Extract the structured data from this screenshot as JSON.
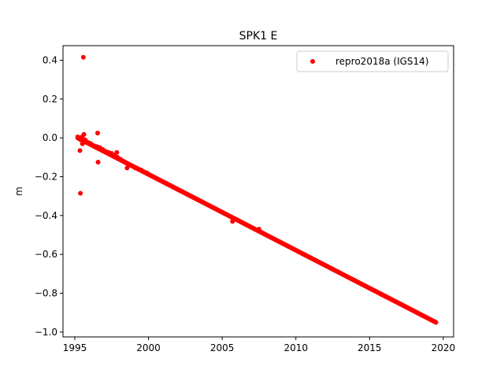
{
  "chart_data": {
    "type": "scatter",
    "title": "SPK1 E",
    "xlabel": "",
    "ylabel": "m",
    "xlim": [
      1994.2,
      2020.7
    ],
    "ylim": [
      -1.025,
      0.475
    ],
    "xticks": [
      1995,
      2000,
      2005,
      2010,
      2015,
      2020
    ],
    "xtick_labels": [
      "1995",
      "2000",
      "2005",
      "2010",
      "2015",
      "2020"
    ],
    "yticks": [
      0.4,
      0.2,
      0.0,
      -0.2,
      -0.4,
      -0.6,
      -0.8,
      -1.0
    ],
    "ytick_labels": [
      "0.4",
      "0.2",
      "0.0",
      "−0.2",
      "−0.4",
      "−0.6",
      "−0.8",
      "−1.0"
    ],
    "grid": false,
    "legend_position": "top-right",
    "series": [
      {
        "name": "repro2018a (IGS14)",
        "color": "#ff0000",
        "trend": {
          "x_start": 1995.2,
          "y_start": 0.0,
          "x_end": 2019.5,
          "y_end": -0.95
        },
        "points": [
          [
            1995.2,
            0.005
          ],
          [
            1995.3,
            0.0
          ],
          [
            1995.4,
            -0.01
          ],
          [
            1995.5,
            0.005
          ],
          [
            1995.6,
            -0.02
          ],
          [
            1995.7,
            -0.01
          ],
          [
            1995.8,
            -0.02
          ],
          [
            1995.95,
            -0.025
          ],
          [
            1996.1,
            -0.03
          ],
          [
            1996.3,
            -0.04
          ],
          [
            1996.5,
            -0.045
          ],
          [
            1996.7,
            -0.05
          ],
          [
            1996.9,
            -0.06
          ],
          [
            1997.1,
            -0.07
          ],
          [
            1997.3,
            -0.075
          ],
          [
            1997.5,
            -0.08
          ],
          [
            1997.7,
            -0.09
          ],
          [
            1997.9,
            -0.1
          ],
          [
            1998.1,
            -0.11
          ],
          [
            1998.3,
            -0.12
          ],
          [
            1998.5,
            -0.13
          ],
          [
            1998.7,
            -0.14
          ],
          [
            1998.9,
            -0.145
          ],
          [
            1999.1,
            -0.155
          ],
          [
            1999.3,
            -0.16
          ],
          [
            1999.5,
            -0.165
          ],
          [
            1999.7,
            -0.175
          ],
          [
            1999.9,
            -0.18
          ],
          [
            1995.35,
            -0.065
          ],
          [
            1995.38,
            -0.285
          ],
          [
            1995.52,
            -0.03
          ],
          [
            1995.58,
            0.415
          ],
          [
            1995.62,
            0.018
          ],
          [
            1996.55,
            0.025
          ],
          [
            1996.58,
            -0.125
          ],
          [
            1997.85,
            -0.075
          ],
          [
            1998.55,
            -0.155
          ],
          [
            2005.7,
            -0.43
          ],
          [
            2007.5,
            -0.47
          ]
        ]
      }
    ]
  }
}
